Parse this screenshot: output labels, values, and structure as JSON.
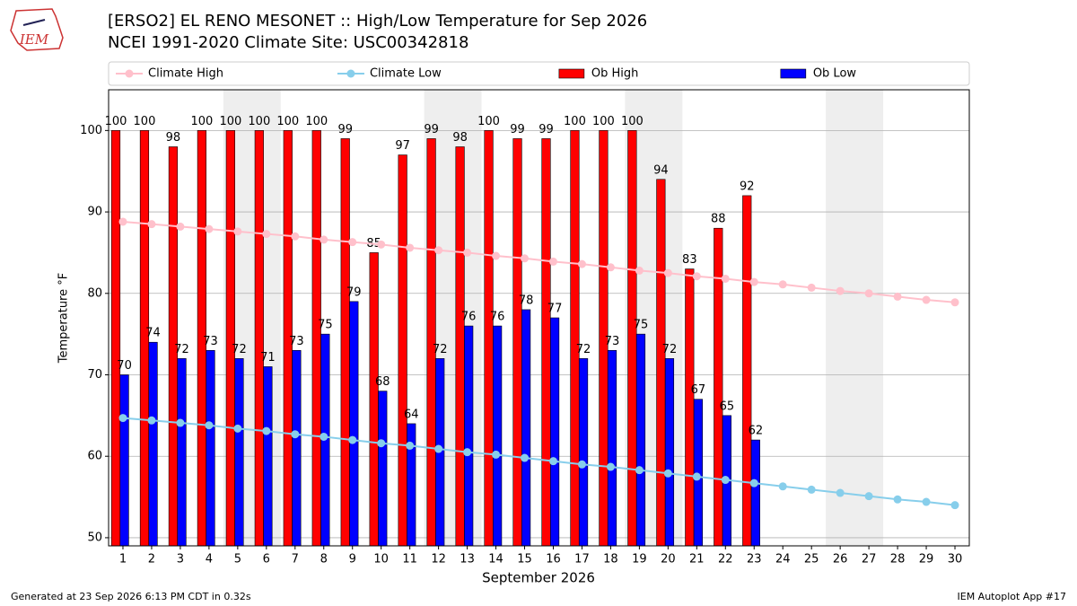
{
  "chart_data": {
    "type": "bar",
    "logo_text": "IEM",
    "title": "[ERSO2] EL RENO MESONET :: High/Low Temperature for Sep 2026",
    "subtitle": "NCEI 1991-2020 Climate Site: USC00342818",
    "x_label": "September 2026",
    "y_label": "Temperature °F",
    "footer_left": "Generated at 23 Sep 2026 6:13 PM CDT in 0.32s",
    "footer_right": "IEM Autoplot App #17",
    "x": [
      1,
      2,
      3,
      4,
      5,
      6,
      7,
      8,
      9,
      10,
      11,
      12,
      13,
      14,
      15,
      16,
      17,
      18,
      19,
      20,
      21,
      22,
      23,
      24,
      25,
      26,
      27,
      28,
      29,
      30
    ],
    "xlim": [
      0.5,
      30.5
    ],
    "xticks": [
      1,
      2,
      3,
      4,
      5,
      6,
      7,
      8,
      9,
      10,
      11,
      12,
      13,
      14,
      15,
      16,
      17,
      18,
      19,
      20,
      21,
      22,
      23,
      24,
      25,
      26,
      27,
      28,
      29,
      30
    ],
    "ylim": [
      49,
      105
    ],
    "yticks": [
      50,
      60,
      70,
      80,
      90,
      100
    ],
    "grid": true,
    "shaded_spans": [
      [
        4.5,
        6.5
      ],
      [
        11.5,
        13.5
      ],
      [
        18.5,
        20.5
      ],
      [
        25.5,
        27.5
      ]
    ],
    "shade_color": "#eeeeee",
    "legend": "top",
    "series": [
      {
        "name": "Climate High",
        "type": "line",
        "color": "#ffc0cb",
        "values": [
          88.8,
          88.5,
          88.2,
          87.9,
          87.6,
          87.3,
          87.0,
          86.6,
          86.3,
          86.0,
          85.6,
          85.3,
          85.0,
          84.6,
          84.3,
          83.9,
          83.6,
          83.2,
          82.8,
          82.5,
          82.1,
          81.8,
          81.4,
          81.1,
          80.7,
          80.3,
          80.0,
          79.6,
          79.2,
          78.9
        ]
      },
      {
        "name": "Climate Low",
        "type": "line",
        "color": "#87ceeb",
        "values": [
          64.7,
          64.4,
          64.1,
          63.8,
          63.4,
          63.1,
          62.7,
          62.4,
          62.0,
          61.6,
          61.3,
          60.9,
          60.5,
          60.2,
          59.8,
          59.4,
          59.0,
          58.7,
          58.3,
          57.9,
          57.5,
          57.1,
          56.7,
          56.3,
          55.9,
          55.5,
          55.1,
          54.7,
          54.4,
          54.0
        ]
      },
      {
        "name": "Ob High",
        "type": "bar",
        "color": "#ff0000",
        "values": [
          100,
          100,
          98,
          100,
          100,
          100,
          100,
          100,
          99,
          85,
          97,
          99,
          98,
          100,
          99,
          99,
          100,
          100,
          100,
          94,
          83,
          88,
          92,
          null,
          null,
          null,
          null,
          null,
          null,
          null
        ]
      },
      {
        "name": "Ob Low",
        "type": "bar",
        "color": "#0000ff",
        "values": [
          70,
          74,
          72,
          73,
          72,
          71,
          73,
          75,
          79,
          68,
          64,
          72,
          76,
          76,
          78,
          77,
          72,
          73,
          75,
          72,
          67,
          65,
          62,
          null,
          null,
          null,
          null,
          null,
          null,
          null
        ]
      }
    ]
  }
}
